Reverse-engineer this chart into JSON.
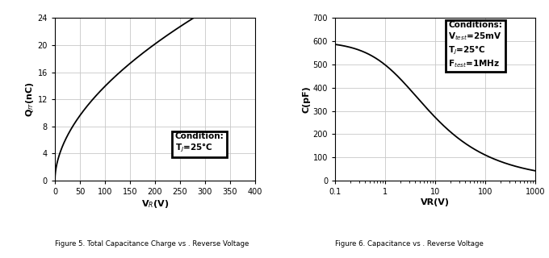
{
  "fig5": {
    "title": "Figure 5. Total Capacitance Charge vs . Reverse Voltage",
    "xlabel": "V$_R$(V)",
    "ylabel": "Q$_{rr}$(nC)",
    "xlim": [
      0,
      400
    ],
    "ylim": [
      0,
      24
    ],
    "xticks": [
      0,
      50,
      100,
      150,
      200,
      250,
      300,
      350,
      400
    ],
    "yticks": [
      0,
      4,
      8,
      12,
      16,
      20,
      24
    ],
    "condition_line1": "Condition:",
    "condition_line2": "T$_J$=25°C",
    "curve_a": 1.185,
    "curve_n": 0.535
  },
  "fig6": {
    "title": "Figure 6. Capacitance vs . Reverse Voltage",
    "xlabel": "VR(V)",
    "ylabel": "C(pF)",
    "xlim_log": [
      0.1,
      1000
    ],
    "ylim": [
      0,
      700
    ],
    "yticks": [
      0,
      100,
      200,
      300,
      400,
      500,
      600,
      700
    ],
    "condition_line1": "Conditions:",
    "condition_line2": "V$_{test}$=25mV",
    "condition_line3": "T$_J$=25°C",
    "condition_line4": "F$_{test}$=1MHz",
    "curve_C0": 600,
    "curve_Vbi": 1.8,
    "curve_n": 0.42
  },
  "line_color": "#000000",
  "grid_color": "#c8c8c8",
  "bg_color": "#ffffff",
  "box_facecolor": "#ffffff",
  "box_edgecolor": "#000000"
}
